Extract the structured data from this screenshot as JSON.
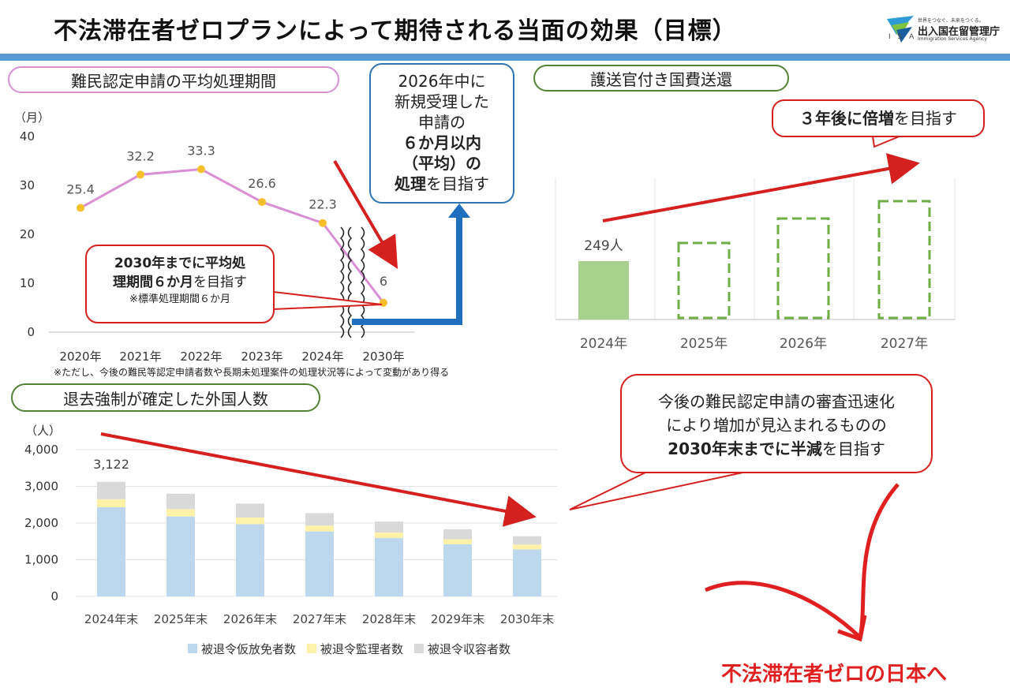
{
  "header": {
    "title": "不法滞在者ゼロプランによって期待される当面の効果（目標）",
    "logo_tagline": "世界をつなぐ、未来をつくる。",
    "logo_name": "出入国在留管理庁",
    "logo_en": "Immigration Services Agency",
    "logo_abbr": "I S A"
  },
  "panel1": {
    "heading": "難民認定申請の平均処理期間",
    "y_unit": "（月）",
    "footnote": "※ただし、今後の難民等認定申請者数や長期未処理案件の処理状況等によって変動があり得る",
    "callout_line1": "2030年までに平均処",
    "callout_line2_bold": "理期間６か月",
    "callout_line2_rest": "を目指す",
    "callout_note": "※標準処理期間６か月",
    "blue_box": {
      "line1": "2026年中に",
      "line2": "新規受理した",
      "line3": "申請の",
      "line4": "６か月以内",
      "line5": "（平均）の",
      "line6_bold": "処理",
      "line6_rest": "を目指す"
    }
  },
  "panel2": {
    "heading": "護送官付き国費送還",
    "callout_bold": "３年後に倍増",
    "callout_rest": "を目指す"
  },
  "panel3": {
    "heading": "退去強制が確定した外国人数",
    "y_unit": "（人）",
    "callout_line1": "今後の難民認定申請の審査迅速化",
    "callout_line2": "により増加が見込まれるものの",
    "callout_line3_bold": "2030年末までに半減",
    "callout_line3_rest": "を目指す"
  },
  "goal_text": "不法滞在者ゼロの日本へ",
  "colors": {
    "line": "#d98fd3",
    "marker": "#f6c02a",
    "bar_green": "#a9d18e",
    "dashed_green": "#70ad47",
    "bar_blue": "#bdd7ee",
    "bar_yellow": "#fff2a8",
    "bar_gray": "#d9d9d9",
    "red": "#d52020",
    "blue": "#1f6fbf"
  },
  "chart_data": [
    {
      "type": "line",
      "categories": [
        "2020年",
        "2021年",
        "2022年",
        "2023年",
        "2024年",
        "2030年"
      ],
      "values": [
        25.4,
        32.2,
        33.3,
        26.6,
        22.3,
        6
      ],
      "labels": [
        "25.4",
        "32.2",
        "33.3",
        "26.6",
        "22.3",
        "6"
      ],
      "y_ticks": [
        "40",
        "30",
        "20",
        "10",
        "0"
      ],
      "ylim": [
        0,
        40
      ],
      "grid": false,
      "axis_break_between": [
        "2024年",
        "2030年"
      ]
    },
    {
      "type": "bar",
      "categories": [
        "2024年",
        "2025年",
        "2026年",
        "2027年"
      ],
      "values": [
        249,
        null,
        null,
        null
      ],
      "labels": [
        "249人",
        "",
        "",
        ""
      ],
      "target_bars_dashed": [
        2025,
        2026,
        2027
      ],
      "grid": true
    },
    {
      "type": "bar",
      "stacked": true,
      "categories": [
        "2024年末",
        "2025年末",
        "2026年末",
        "2027年末",
        "2028年末",
        "2029年末",
        "2030年末"
      ],
      "series": [
        {
          "name": "被退令仮放免者数",
          "values": [
            2430,
            2180,
            1970,
            1770,
            1590,
            1420,
            1280
          ]
        },
        {
          "name": "被退令監理者数",
          "values": [
            220,
            200,
            180,
            160,
            150,
            140,
            130
          ]
        },
        {
          "name": "被退令収容者数",
          "values": [
            472,
            420,
            380,
            340,
            300,
            270,
            230
          ]
        }
      ],
      "total_labels": [
        "3,122",
        "",
        "",
        "",
        "",
        "",
        ""
      ],
      "y_ticks": [
        "4,000",
        "3,000",
        "2,000",
        "1,000",
        "0"
      ],
      "ylim": [
        0,
        4000
      ],
      "legend_position": "bottom",
      "grid": true
    }
  ]
}
